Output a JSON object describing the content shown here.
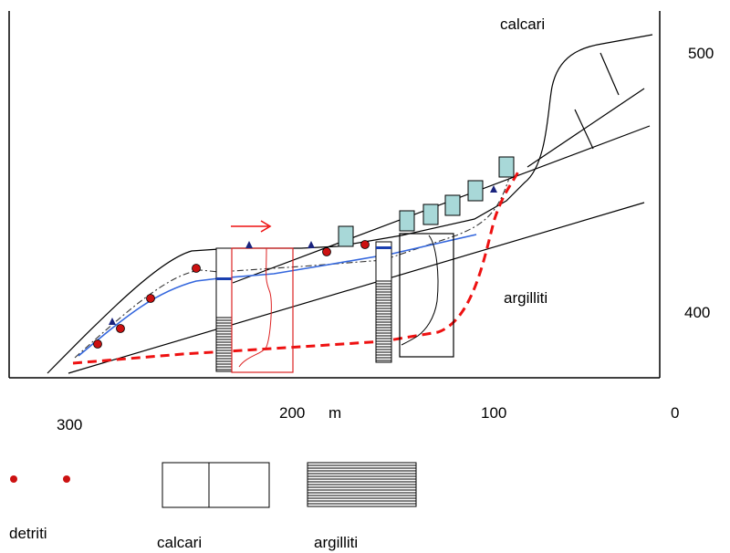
{
  "labels": {
    "calcari_top": "calcari",
    "argilliti_mid": "argilliti",
    "elev_500": "500",
    "elev_400": "400",
    "x_300": "300",
    "x_200": "200",
    "x_unit": "m",
    "x_100": "100",
    "x_0": "0"
  },
  "legend": {
    "detriti": "detriti",
    "calcari": "calcari",
    "argilliti": "argilliti"
  },
  "colors": {
    "line": "#000000",
    "water_table": "#3366dd",
    "slip_surface": "#ee1111",
    "debris": "#cc1111",
    "block": "#a8d8d8",
    "marker": "#1a237e",
    "inclinometer": "#dd2222"
  }
}
